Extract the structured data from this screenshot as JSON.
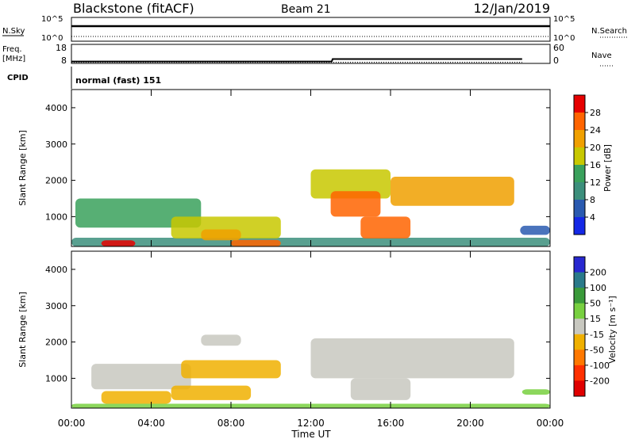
{
  "header": {
    "station": "Blackstone (fitACF)",
    "beam": "Beam 21",
    "date": "12/Jan/2019"
  },
  "noise_panel": {
    "left_label": "N.Sky",
    "left_ticks": [
      "10^5",
      "10^0"
    ],
    "right_ticks": [
      "10^5",
      "10^0"
    ],
    "right_label": "N.Search"
  },
  "freq_panel": {
    "left_label_1": "Freq.",
    "left_label_2": "[MHz]",
    "left_ticks": [
      "18",
      "8"
    ],
    "right_ticks": [
      "60",
      "0"
    ],
    "right_label": "Nave",
    "freq_series": {
      "x": [
        0,
        13.05,
        13.1,
        22.6
      ],
      "y": [
        9.0,
        9.0,
        10.3,
        10.3
      ]
    },
    "nave_series": {
      "x": [
        0,
        22.6
      ],
      "y": [
        1,
        1
      ]
    }
  },
  "cpid": {
    "label": "CPID",
    "value": "normal (fast) 151"
  },
  "x_axis": {
    "ticks": [
      "00:00",
      "04:00",
      "08:00",
      "12:00",
      "16:00",
      "20:00",
      "00:00"
    ],
    "label": "Time UT"
  },
  "chart_data": [
    {
      "type": "heatmap",
      "panel": "power",
      "ylabel": "Slant Range [km]",
      "yticks": [
        "1000",
        "2000",
        "3000",
        "4000"
      ],
      "ylim": [
        180,
        4500
      ],
      "xlim": [
        0,
        24
      ],
      "colorbar_label": "Power [dB]",
      "colorbar_ticks": [
        "4",
        "8",
        "12",
        "16",
        "20",
        "24",
        "28"
      ],
      "colorbar_colors": [
        "#1428e6",
        "#2a5ab0",
        "#3c8f7c",
        "#3aa15c",
        "#c8c800",
        "#f0a000",
        "#ff6400",
        "#e60000"
      ],
      "regions": [
        {
          "t0": 0.0,
          "t1": 24.0,
          "r0": 180,
          "r1": 420,
          "level": 2
        },
        {
          "t0": 1.5,
          "t1": 3.2,
          "r0": 180,
          "r1": 350,
          "level": 7
        },
        {
          "t0": 8.0,
          "t1": 10.5,
          "r0": 180,
          "r1": 360,
          "level": 6
        },
        {
          "t0": 0.2,
          "t1": 6.5,
          "r0": 700,
          "r1": 1500,
          "level": 3
        },
        {
          "t0": 5.0,
          "t1": 10.5,
          "r0": 400,
          "r1": 1000,
          "level": 4
        },
        {
          "t0": 6.5,
          "t1": 8.5,
          "r0": 350,
          "r1": 650,
          "level": 5
        },
        {
          "t0": 12.0,
          "t1": 16.0,
          "r0": 1500,
          "r1": 2300,
          "level": 4
        },
        {
          "t0": 13.0,
          "t1": 15.5,
          "r0": 1000,
          "r1": 1700,
          "level": 6
        },
        {
          "t0": 14.5,
          "t1": 17.0,
          "r0": 400,
          "r1": 1000,
          "level": 6
        },
        {
          "t0": 16.0,
          "t1": 22.2,
          "r0": 1300,
          "r1": 2100,
          "level": 5
        },
        {
          "t0": 22.5,
          "t1": 24.0,
          "r0": 500,
          "r1": 750,
          "level": 1
        }
      ]
    },
    {
      "type": "heatmap",
      "panel": "velocity",
      "ylabel": "Slant Range [km]",
      "yticks": [
        "1000",
        "2000",
        "3000",
        "4000"
      ],
      "ylim": [
        180,
        4500
      ],
      "xlim": [
        0,
        24
      ],
      "colorbar_label": "Velocity [m s⁻¹]",
      "colorbar_ticks": [
        "200",
        "100",
        "50",
        "15",
        "-15",
        "-50",
        "-100",
        "-200"
      ],
      "colorbar_colors": [
        "#2828d0",
        "#2a7a8a",
        "#3a9a3a",
        "#78d040",
        "#c8c8c0",
        "#f0b000",
        "#ff7800",
        "#ff3000",
        "#e00000"
      ],
      "regions": [
        {
          "t0": 0.0,
          "t1": 24.0,
          "r0": 180,
          "r1": 300,
          "level": 3
        },
        {
          "t0": 1.0,
          "t1": 6.0,
          "r0": 700,
          "r1": 1400,
          "level": 4
        },
        {
          "t0": 5.5,
          "t1": 10.5,
          "r0": 1000,
          "r1": 1500,
          "level": 5
        },
        {
          "t0": 5.0,
          "t1": 9.0,
          "r0": 400,
          "r1": 800,
          "level": 5
        },
        {
          "t0": 1.5,
          "t1": 5.0,
          "r0": 300,
          "r1": 650,
          "level": 5
        },
        {
          "t0": 12.0,
          "t1": 22.2,
          "r0": 1000,
          "r1": 2100,
          "level": 4
        },
        {
          "t0": 14.0,
          "t1": 17.0,
          "r0": 400,
          "r1": 1000,
          "level": 4
        },
        {
          "t0": 6.5,
          "t1": 8.5,
          "r0": 1900,
          "r1": 2200,
          "level": 4
        },
        {
          "t0": 22.6,
          "t1": 24.0,
          "r0": 550,
          "r1": 700,
          "level": 3
        }
      ]
    }
  ]
}
